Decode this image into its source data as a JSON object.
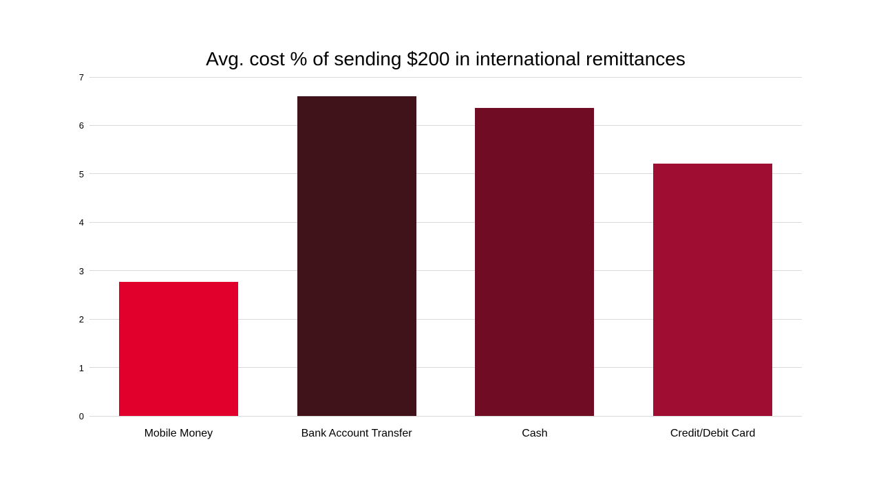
{
  "chart_data": {
    "type": "bar",
    "title": "Avg. cost % of sending $200 in international remittances",
    "categories": [
      "Mobile Money",
      "Bank Account Transfer",
      "Cash",
      "Credit/Debit Card"
    ],
    "values": [
      2.77,
      6.6,
      6.36,
      5.21
    ],
    "bar_colors": [
      "#e0002b",
      "#40121a",
      "#700c24",
      "#a00d32"
    ],
    "xlabel": "",
    "ylabel": "",
    "ylim": [
      0,
      7
    ],
    "yticks": [
      0,
      1,
      2,
      3,
      4,
      5,
      6,
      7
    ],
    "grid": "horizontal",
    "gridline_color": "#d9d9d9",
    "legend": "none",
    "background": "#ffffff"
  }
}
